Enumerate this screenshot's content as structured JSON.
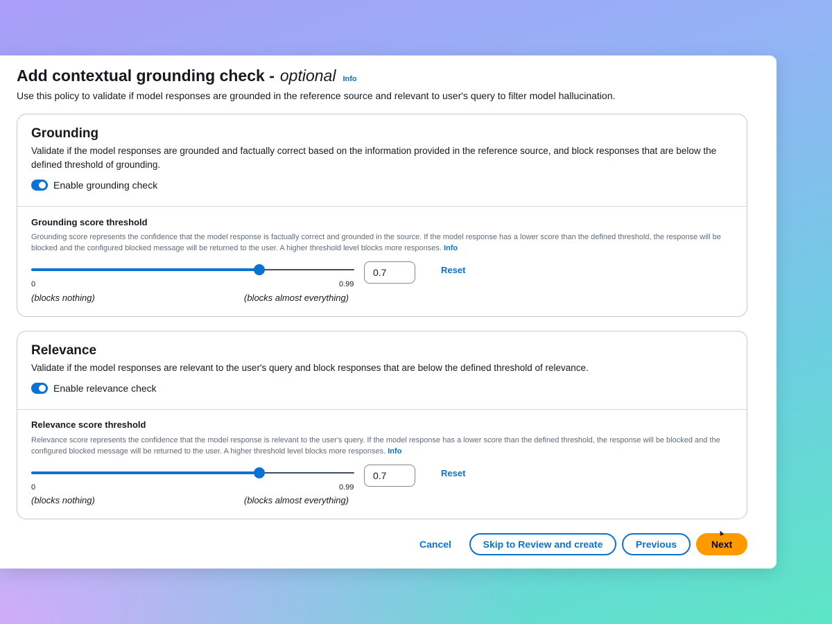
{
  "header": {
    "title": "Add contextual grounding check -",
    "title_optional": "optional",
    "info": "Info",
    "description": "Use this policy to validate if model responses are grounded in the reference source and relevant to user's query to filter model hallucination."
  },
  "grounding": {
    "title": "Grounding",
    "description": "Validate if the model responses are grounded and factually correct based on the information provided in the reference source, and block responses that are below the defined threshold of grounding.",
    "toggle_label": "Enable grounding check",
    "enabled": true,
    "threshold_title": "Grounding score threshold",
    "threshold_description": "Grounding score represents the confidence that the model response is factually correct and grounded in the source. If the model response has a lower score than the defined threshold, the response will be blocked and the configured blocked message will be returned to the user. A higher threshold level blocks more responses.",
    "info": "Info",
    "slider_min": 0,
    "slider_max": 0.99,
    "slider_value": 0.7,
    "min_label": "0",
    "max_label": "0.99",
    "min_desc": "(blocks nothing)",
    "max_desc": "(blocks almost everything)",
    "input_value": "0.7",
    "reset_label": "Reset"
  },
  "relevance": {
    "title": "Relevance",
    "description": "Validate if the model responses are relevant to the user's query and block responses that are below the defined threshold of relevance.",
    "toggle_label": "Enable relevance check",
    "enabled": true,
    "threshold_title": "Relevance score threshold",
    "threshold_description": "Relevance score represents the confidence that the model response is relevant to the user's query. If the model response has a lower score than the defined threshold, the response will be blocked and the configured blocked message will be returned to the user. A higher threshold level blocks more responses.",
    "info": "Info",
    "slider_min": 0,
    "slider_max": 0.99,
    "slider_value": 0.7,
    "min_label": "0",
    "max_label": "0.99",
    "min_desc": "(blocks nothing)",
    "max_desc": "(blocks almost everything)",
    "input_value": "0.7",
    "reset_label": "Reset"
  },
  "footer": {
    "cancel": "Cancel",
    "skip": "Skip to Review and create",
    "previous": "Previous",
    "next": "Next"
  },
  "colors": {
    "accent": "#0972d3",
    "primary_button": "#ff9900"
  }
}
